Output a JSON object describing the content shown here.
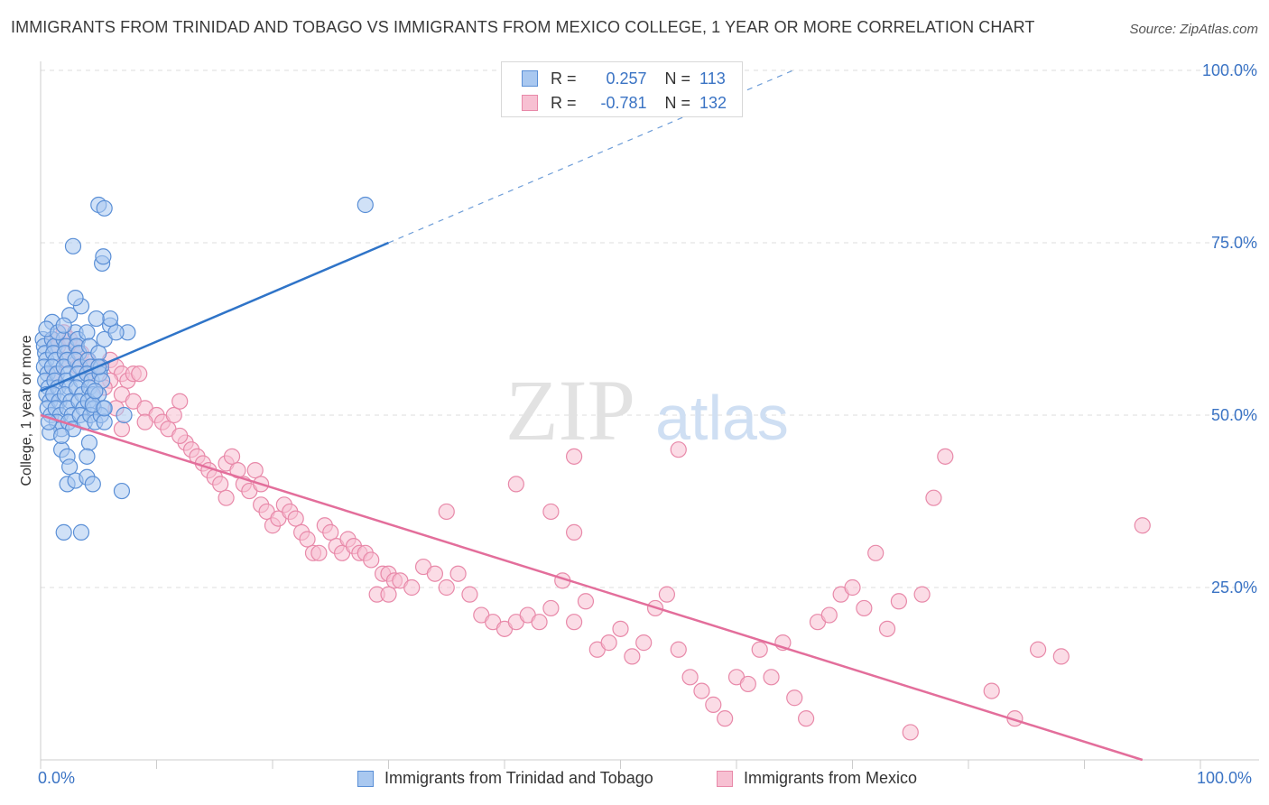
{
  "header": {
    "title": "IMMIGRANTS FROM TRINIDAD AND TOBAGO VS IMMIGRANTS FROM MEXICO COLLEGE, 1 YEAR OR MORE CORRELATION CHART",
    "source": "Source: ZipAtlas.com"
  },
  "watermark": {
    "zip": "ZIP",
    "atlas": "atlas"
  },
  "stats": {
    "rows": [
      {
        "r_label": "R =",
        "r_value": "0.257",
        "n_label": "N =",
        "n_value": "113"
      },
      {
        "r_label": "R =",
        "r_value": "-0.781",
        "n_label": "N =",
        "n_value": "132"
      }
    ]
  },
  "legend": {
    "items": [
      {
        "label": "Immigrants from Trinidad and Tobago"
      },
      {
        "label": "Immigrants from Mexico"
      }
    ]
  },
  "colors": {
    "blue_fill": "#a9c8f0",
    "blue_stroke": "#5a8fd6",
    "blue_line": "#2f74c8",
    "pink_fill": "#f7c0d2",
    "pink_stroke": "#e889a9",
    "pink_line": "#e36e9b",
    "tick_label": "#3a73c4",
    "grid": "#dddddd"
  },
  "chart_data": {
    "type": "scatter",
    "title": "IMMIGRANTS FROM TRINIDAD AND TOBAGO VS IMMIGRANTS FROM MEXICO COLLEGE, 1 YEAR OR MORE CORRELATION CHART",
    "xlabel": "",
    "ylabel": "College, 1 year or more",
    "xlim": [
      0,
      100
    ],
    "ylim": [
      0,
      100
    ],
    "x_tick_labels": [
      "0.0%",
      "100.0%"
    ],
    "y_ticks": [
      25,
      50,
      75,
      100
    ],
    "y_tick_labels": [
      "25.0%",
      "50.0%",
      "75.0%",
      "100.0%"
    ],
    "grid": true,
    "legend_position": "bottom",
    "series": [
      {
        "name": "Immigrants from Trinidad and Tobago",
        "r": 0.257,
        "n": 113,
        "trend": {
          "x0": 0,
          "y0": 53.5,
          "x1": 30,
          "y1": 75,
          "dashed_to_x": 100
        },
        "points": [
          [
            0.2,
            61
          ],
          [
            0.3,
            60
          ],
          [
            0.4,
            59
          ],
          [
            0.5,
            58
          ],
          [
            0.3,
            57
          ],
          [
            0.6,
            56
          ],
          [
            0.4,
            55
          ],
          [
            0.7,
            54
          ],
          [
            0.5,
            53
          ],
          [
            0.8,
            52
          ],
          [
            0.6,
            51
          ],
          [
            0.9,
            50
          ],
          [
            1.0,
            61
          ],
          [
            1.2,
            60
          ],
          [
            1.1,
            59
          ],
          [
            1.3,
            58
          ],
          [
            1.0,
            57
          ],
          [
            1.4,
            56
          ],
          [
            1.2,
            55
          ],
          [
            1.5,
            54
          ],
          [
            1.1,
            53
          ],
          [
            1.6,
            52
          ],
          [
            1.3,
            51
          ],
          [
            1.7,
            50
          ],
          [
            1.4,
            49
          ],
          [
            1.8,
            48
          ],
          [
            2.0,
            61
          ],
          [
            2.2,
            60
          ],
          [
            2.1,
            59
          ],
          [
            2.3,
            58
          ],
          [
            2.0,
            57
          ],
          [
            2.4,
            56
          ],
          [
            2.2,
            55
          ],
          [
            2.5,
            54
          ],
          [
            2.1,
            53
          ],
          [
            2.6,
            52
          ],
          [
            2.3,
            51
          ],
          [
            2.7,
            50
          ],
          [
            2.4,
            49
          ],
          [
            2.8,
            48
          ],
          [
            3.0,
            62
          ],
          [
            3.2,
            61
          ],
          [
            3.1,
            60
          ],
          [
            3.3,
            59
          ],
          [
            3.0,
            58
          ],
          [
            3.4,
            57
          ],
          [
            3.2,
            56
          ],
          [
            3.5,
            55
          ],
          [
            3.1,
            54
          ],
          [
            3.6,
            53
          ],
          [
            3.3,
            52
          ],
          [
            3.7,
            51
          ],
          [
            3.4,
            50
          ],
          [
            3.8,
            49
          ],
          [
            4.0,
            62
          ],
          [
            4.2,
            60
          ],
          [
            4.1,
            58
          ],
          [
            4.3,
            57
          ],
          [
            4.0,
            56
          ],
          [
            4.4,
            55
          ],
          [
            4.2,
            54
          ],
          [
            4.5,
            53
          ],
          [
            4.1,
            52
          ],
          [
            4.6,
            51
          ],
          [
            4.3,
            50
          ],
          [
            4.7,
            49
          ],
          [
            5.0,
            59
          ],
          [
            5.2,
            57
          ],
          [
            5.1,
            56
          ],
          [
            5.3,
            55
          ],
          [
            5.0,
            53
          ],
          [
            5.4,
            51
          ],
          [
            5.2,
            50
          ],
          [
            5.5,
            49
          ],
          [
            1.0,
            63.5
          ],
          [
            2.5,
            64.5
          ],
          [
            3.5,
            65.8
          ],
          [
            3.0,
            67
          ],
          [
            6.0,
            63
          ],
          [
            7.5,
            62
          ],
          [
            5.5,
            61
          ],
          [
            6.5,
            62
          ],
          [
            6.0,
            64
          ],
          [
            0.5,
            62.5
          ],
          [
            1.5,
            62
          ],
          [
            2.0,
            63
          ],
          [
            1.8,
            45
          ],
          [
            2.3,
            44
          ],
          [
            2.5,
            42.5
          ],
          [
            2.3,
            40
          ],
          [
            3.0,
            40.5
          ],
          [
            4.0,
            41
          ],
          [
            2.0,
            33
          ],
          [
            3.5,
            33
          ],
          [
            4.2,
            46
          ],
          [
            4.5,
            40
          ],
          [
            7.0,
            39
          ],
          [
            7.2,
            50
          ],
          [
            4.5,
            51.5
          ],
          [
            4.7,
            53.5
          ],
          [
            5.5,
            51
          ],
          [
            2.8,
            74.5
          ],
          [
            5.0,
            80.5
          ],
          [
            5.5,
            80
          ],
          [
            4.8,
            64
          ],
          [
            5.3,
            72
          ],
          [
            5.4,
            73
          ],
          [
            28.0,
            80.5
          ],
          [
            0.8,
            47.5
          ],
          [
            1.8,
            47
          ],
          [
            0.7,
            49
          ],
          [
            4.0,
            44
          ],
          [
            5.0,
            57
          ]
        ]
      },
      {
        "name": "Immigrants from Mexico",
        "r": -0.781,
        "n": 132,
        "trend": {
          "x0": 0,
          "y0": 50,
          "x1": 95,
          "y1": 0
        },
        "points": [
          [
            1.0,
            61
          ],
          [
            1.5,
            60
          ],
          [
            2.0,
            62
          ],
          [
            2.5,
            61
          ],
          [
            3.0,
            60
          ],
          [
            3.5,
            59
          ],
          [
            4.0,
            58
          ],
          [
            4.5,
            57
          ],
          [
            1.2,
            56
          ],
          [
            2.2,
            58
          ],
          [
            3.2,
            57
          ],
          [
            4.2,
            56
          ],
          [
            5.0,
            57
          ],
          [
            6.0,
            58
          ],
          [
            6.5,
            57
          ],
          [
            7.0,
            56
          ],
          [
            7.5,
            55
          ],
          [
            8.0,
            56
          ],
          [
            8.5,
            56
          ],
          [
            6.0,
            55
          ],
          [
            7.0,
            53
          ],
          [
            8.0,
            52
          ],
          [
            9.0,
            51
          ],
          [
            10.0,
            50
          ],
          [
            10.5,
            49
          ],
          [
            11.0,
            48
          ],
          [
            11.5,
            50
          ],
          [
            12.0,
            52
          ],
          [
            12.5,
            46
          ],
          [
            13.0,
            45
          ],
          [
            13.5,
            44
          ],
          [
            14.0,
            43
          ],
          [
            14.5,
            42
          ],
          [
            15.0,
            41
          ],
          [
            15.5,
            40
          ],
          [
            16.0,
            43
          ],
          [
            16.5,
            44
          ],
          [
            17.0,
            42
          ],
          [
            17.5,
            40
          ],
          [
            18.0,
            39
          ],
          [
            18.5,
            42
          ],
          [
            19.0,
            37
          ],
          [
            19.5,
            36
          ],
          [
            20.0,
            34
          ],
          [
            20.5,
            35
          ],
          [
            21.0,
            37
          ],
          [
            21.5,
            36
          ],
          [
            22.0,
            35
          ],
          [
            22.5,
            33
          ],
          [
            23.0,
            32
          ],
          [
            23.5,
            30
          ],
          [
            24.0,
            30
          ],
          [
            24.5,
            34
          ],
          [
            25.0,
            33
          ],
          [
            25.5,
            31
          ],
          [
            26.0,
            30
          ],
          [
            26.5,
            32
          ],
          [
            27.0,
            31
          ],
          [
            27.5,
            30
          ],
          [
            28.0,
            30
          ],
          [
            28.5,
            29
          ],
          [
            29.0,
            24
          ],
          [
            29.5,
            27
          ],
          [
            30.0,
            27
          ],
          [
            30.5,
            26
          ],
          [
            31.0,
            26
          ],
          [
            32.0,
            25
          ],
          [
            33.0,
            28
          ],
          [
            34.0,
            27
          ],
          [
            35.0,
            25
          ],
          [
            36.0,
            27
          ],
          [
            37.0,
            24
          ],
          [
            38.0,
            21
          ],
          [
            39.0,
            20
          ],
          [
            40.0,
            19
          ],
          [
            41.0,
            20
          ],
          [
            42.0,
            21
          ],
          [
            43.0,
            20
          ],
          [
            44.0,
            22
          ],
          [
            45.0,
            26
          ],
          [
            46.0,
            20
          ],
          [
            47.0,
            23
          ],
          [
            48.0,
            16
          ],
          [
            49.0,
            17
          ],
          [
            50.0,
            19
          ],
          [
            51.0,
            15
          ],
          [
            52.0,
            17
          ],
          [
            53.0,
            22
          ],
          [
            54.0,
            24
          ],
          [
            55.0,
            16
          ],
          [
            56.0,
            12
          ],
          [
            57.0,
            10
          ],
          [
            58.0,
            8
          ],
          [
            59.0,
            6
          ],
          [
            60.0,
            12
          ],
          [
            61.0,
            11
          ],
          [
            62.0,
            16
          ],
          [
            63.0,
            12
          ],
          [
            64.0,
            17
          ],
          [
            65.0,
            9
          ],
          [
            66.0,
            6
          ],
          [
            67.0,
            20
          ],
          [
            68.0,
            21
          ],
          [
            69.0,
            24
          ],
          [
            70.0,
            25
          ],
          [
            71.0,
            22
          ],
          [
            72.0,
            30
          ],
          [
            73.0,
            19
          ],
          [
            74.0,
            23
          ],
          [
            75.0,
            4
          ],
          [
            76.0,
            24
          ],
          [
            77.0,
            38
          ],
          [
            78.0,
            44
          ],
          [
            82.0,
            10
          ],
          [
            84.0,
            6
          ],
          [
            86.0,
            16
          ],
          [
            88.0,
            15
          ],
          [
            95.0,
            34
          ],
          [
            46.0,
            44
          ],
          [
            55.0,
            45
          ],
          [
            41.0,
            40
          ],
          [
            44.0,
            36
          ],
          [
            46.0,
            33
          ],
          [
            35.0,
            36
          ],
          [
            30.0,
            24
          ],
          [
            19.0,
            40
          ],
          [
            16.0,
            38
          ],
          [
            12.0,
            47
          ],
          [
            9.0,
            49
          ],
          [
            7.0,
            48
          ],
          [
            6.5,
            51
          ],
          [
            5.5,
            54
          ]
        ]
      }
    ]
  }
}
